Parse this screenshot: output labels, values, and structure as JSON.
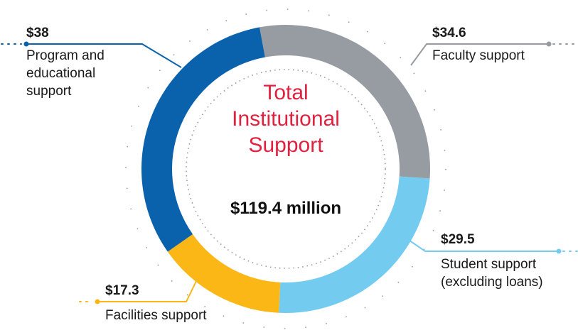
{
  "chart_data": {
    "type": "donut",
    "title": "Total Institutional Support",
    "total_label": "$119.4 million",
    "categories": [
      "Faculty support",
      "Student support (excluding loans)",
      "Facilities support",
      "Program and educational support"
    ],
    "values": [
      34.6,
      29.5,
      17.3,
      38
    ],
    "value_labels": [
      "$34.6",
      "$29.5",
      "$17.3",
      "$38"
    ],
    "colors": [
      "#979ca2",
      "#74cbf0",
      "#fbb715",
      "#0a62ad"
    ]
  }
}
